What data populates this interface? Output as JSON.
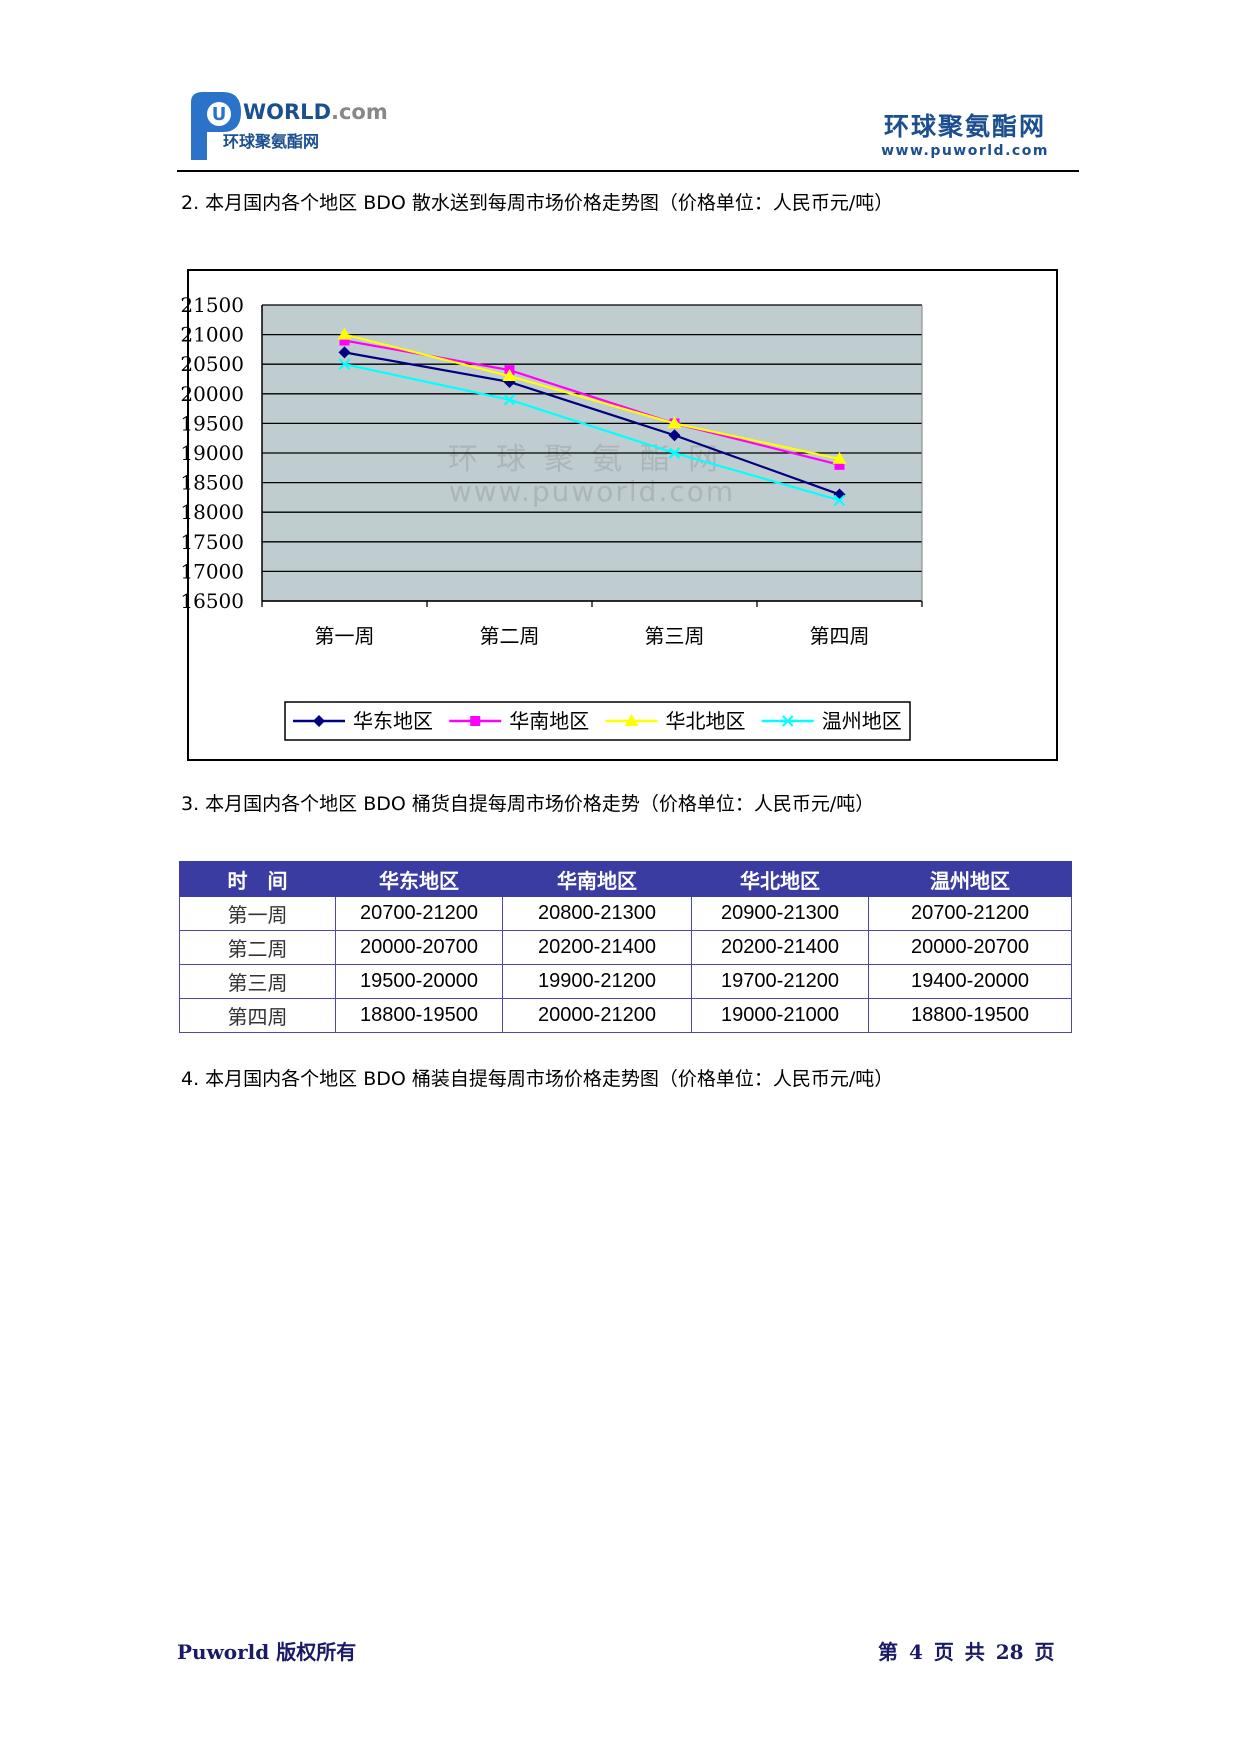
{
  "header": {
    "logo_brand": "WORLD",
    "logo_domain": ".com",
    "logo_cn": "环球聚氨酯网",
    "right_cn": "环球聚氨酯网",
    "right_url": "www.puworld.com"
  },
  "sections": {
    "s2_title": "2. 本月国内各个地区 BDO 散水送到每周市场价格走势图（价格单位：人民币元/吨）",
    "s3_title": "3. 本月国内各个地区 BDO 桶货自提每周市场价格走势（价格单位：人民币元/吨）",
    "s4_title": "4. 本月国内各个地区 BDO 桶装自提每周市场价格走势图（价格单位：人民币元/吨）"
  },
  "chart_data": {
    "type": "line",
    "categories": [
      "第一周",
      "第二周",
      "第三周",
      "第四周"
    ],
    "ylim": [
      16500,
      21500
    ],
    "yticks": [
      21500,
      21000,
      20500,
      20000,
      19500,
      19000,
      18500,
      18000,
      17500,
      17000,
      16500
    ],
    "grid": true,
    "legend_position": "bottom",
    "watermark": {
      "cn": "环球聚氨酯网",
      "url": "www.puworld.com"
    },
    "series": [
      {
        "name": "华东地区",
        "values": [
          20700,
          20200,
          19300,
          18300
        ],
        "color": "#000080",
        "marker": "diamond"
      },
      {
        "name": "华南地区",
        "values": [
          20900,
          20400,
          19500,
          18800
        ],
        "color": "#ff00ff",
        "marker": "square"
      },
      {
        "name": "华北地区",
        "values": [
          21000,
          20300,
          19500,
          18900
        ],
        "color": "#ffff00",
        "marker": "triangle"
      },
      {
        "name": "温州地区",
        "values": [
          20500,
          19900,
          19000,
          18200
        ],
        "color": "#00ffff",
        "marker": "x"
      }
    ]
  },
  "table": {
    "headers": [
      "时　间",
      "华东地区",
      "华南地区",
      "华北地区",
      "温州地区"
    ],
    "rows": [
      [
        "第一周",
        "20700-21200",
        "20800-21300",
        "20900-21300",
        "20700-21200"
      ],
      [
        "第二周",
        "20000-20700",
        "20200-21400",
        "20200-21400",
        "20000-20700"
      ],
      [
        "第三周",
        "19500-20000",
        "19900-21200",
        "19700-21200",
        "19400-20000"
      ],
      [
        "第四周",
        "18800-19500",
        "20000-21200",
        "19000-21000",
        "18800-19500"
      ]
    ]
  },
  "footer": {
    "copyright": "Puworld 版权所有",
    "page_info": "第 4 页 共 28 页"
  }
}
